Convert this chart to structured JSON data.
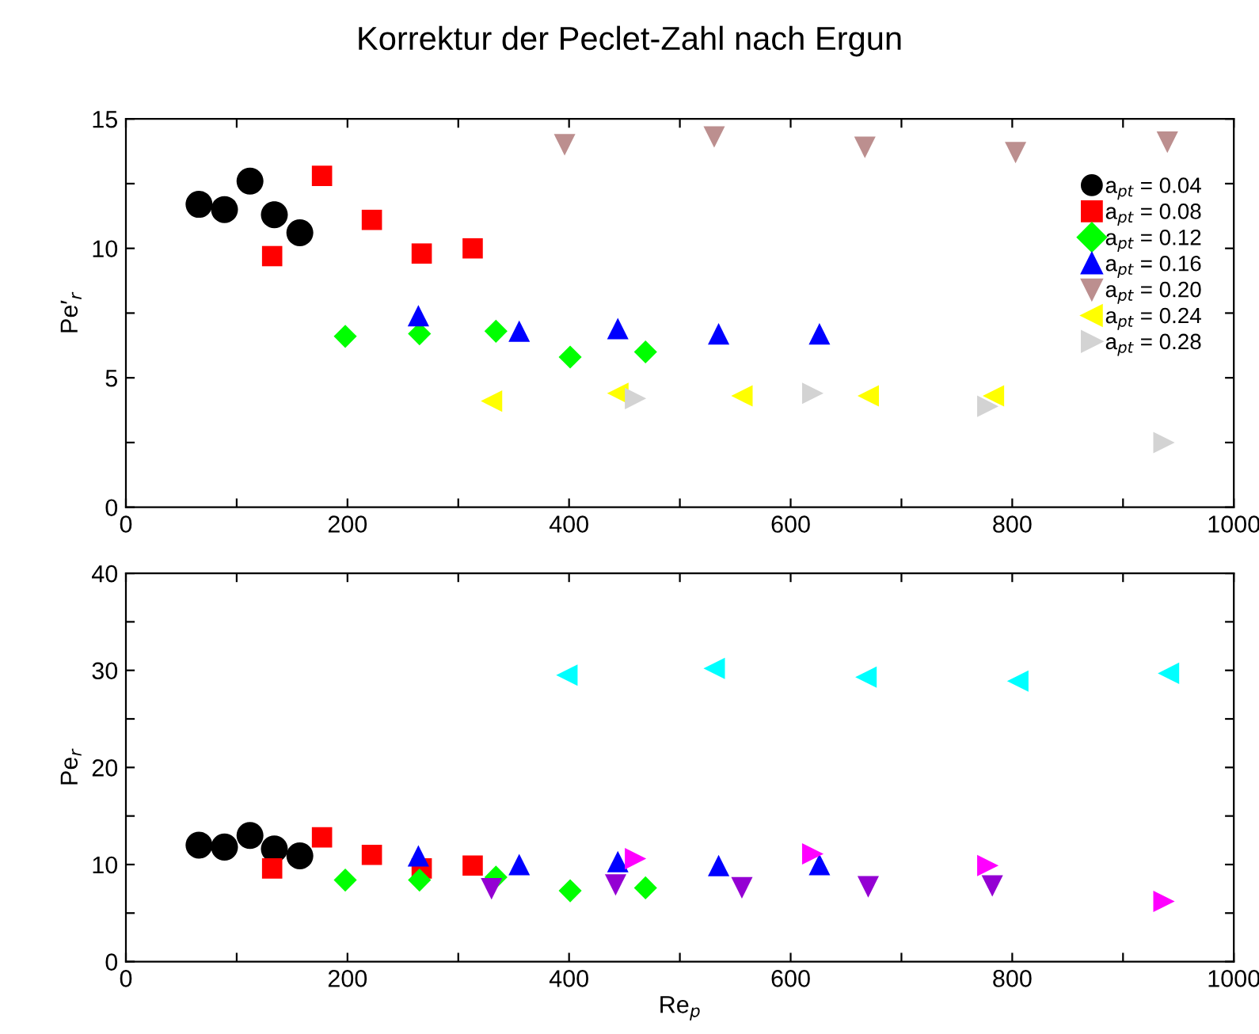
{
  "chart_data": [
    {
      "type": "scatter",
      "title": "Korrektur der Peclet-Zahl nach Ergun",
      "ylabel": "Pe′$_{r}$",
      "xlim": [
        0,
        1000
      ],
      "xticks": [
        0,
        {
          "value": 100,
          "label": null
        },
        200,
        {
          "value": 300,
          "label": null
        },
        400,
        {
          "value": 500,
          "label": null
        },
        600,
        {
          "value": 700,
          "label": null
        },
        800,
        {
          "value": 900,
          "label": null
        },
        1000
      ],
      "ylim": [
        0,
        15
      ],
      "yticks": [
        0,
        {
          "value": 2.5,
          "label": null
        },
        5,
        {
          "value": 7.5,
          "label": null
        },
        10,
        {
          "value": 12.5,
          "label": null
        },
        15
      ],
      "grid": false,
      "legend": "right",
      "series": [
        {
          "name": "a$_{pt}$ = 0.04",
          "color": "#000000",
          "marker": "circle",
          "x": [
            66,
            89,
            112,
            134,
            157
          ],
          "values": [
            11.7,
            11.5,
            12.6,
            11.3,
            10.6
          ]
        },
        {
          "name": "a$_{pt}$ = 0.08",
          "color": "#ff0000",
          "marker": "square",
          "x": [
            132,
            177,
            222,
            267,
            313
          ],
          "values": [
            9.7,
            12.8,
            11.1,
            9.8,
            10.0
          ]
        },
        {
          "name": "a$_{pt}$ = 0.12",
          "color": "#00ff00",
          "marker": "diamond",
          "x": [
            198,
            265,
            334,
            401,
            469
          ],
          "values": [
            6.6,
            6.7,
            6.8,
            5.8,
            6.0
          ]
        },
        {
          "name": "a$_{pt}$ = 0.16",
          "color": "#0000ff",
          "marker": "triangle",
          "x": [
            264,
            355,
            444,
            535,
            626
          ],
          "values": [
            7.4,
            6.8,
            6.9,
            6.7,
            6.7
          ]
        },
        {
          "name": "a$_{pt}$ = 0.20",
          "color": "#bc8f8f",
          "marker": "triangle_down",
          "x": [
            396,
            531,
            667,
            803,
            940
          ],
          "values": [
            14.0,
            14.3,
            13.9,
            13.7,
            14.1
          ]
        },
        {
          "name": "a$_{pt}$ = 0.24",
          "color": "#ffff00",
          "marker": "triangle_left",
          "x": [
            330,
            444,
            556,
            670,
            783
          ],
          "values": [
            4.1,
            4.4,
            4.3,
            4.3,
            4.3
          ]
        },
        {
          "name": "a$_{pt}$ = 0.28",
          "color": "#d3d3d3",
          "marker": "triangle_right",
          "x": [
            460,
            620,
            778,
            937
          ],
          "values": [
            4.2,
            4.4,
            3.9,
            2.5
          ]
        }
      ]
    },
    {
      "type": "scatter",
      "ylabel": "Pe$_{r}$",
      "xlabel": "Re$_{p}$",
      "xlim": [
        0,
        1000
      ],
      "xticks": [
        0,
        {
          "value": 100,
          "label": null
        },
        200,
        {
          "value": 300,
          "label": null
        },
        400,
        {
          "value": 500,
          "label": null
        },
        600,
        {
          "value": 700,
          "label": null
        },
        800,
        {
          "value": 900,
          "label": null
        },
        1000
      ],
      "ylim": [
        0,
        40
      ],
      "yticks": [
        0,
        {
          "value": 5,
          "label": null
        },
        10,
        {
          "value": 15,
          "label": null
        },
        20,
        {
          "value": 25,
          "label": null
        },
        30,
        {
          "value": 35,
          "label": null
        },
        40
      ],
      "grid": false,
      "series": [
        {
          "color": "#000000",
          "marker": "circle",
          "x": [
            66,
            89,
            112,
            134,
            157
          ],
          "values": [
            12.0,
            11.8,
            13.0,
            11.6,
            10.9
          ]
        },
        {
          "color": "#ff0000",
          "marker": "square",
          "x": [
            132,
            177,
            222,
            267,
            313
          ],
          "values": [
            9.6,
            12.8,
            11.0,
            9.6,
            9.9
          ]
        },
        {
          "color": "#00ff00",
          "marker": "diamond",
          "x": [
            198,
            265,
            334,
            401,
            469
          ],
          "values": [
            8.4,
            8.4,
            8.7,
            7.3,
            7.6
          ]
        },
        {
          "color": "#0000ff",
          "marker": "triangle",
          "x": [
            264,
            355,
            444,
            535,
            626
          ],
          "values": [
            10.9,
            10.0,
            10.3,
            9.9,
            10.0
          ]
        },
        {
          "color": "#9400d3",
          "marker": "triangle_down",
          "x": [
            330,
            442,
            556,
            670,
            782
          ],
          "values": [
            7.5,
            7.9,
            7.6,
            7.7,
            7.8
          ]
        },
        {
          "color": "#00ffff",
          "marker": "triangle_left",
          "x": [
            398,
            531,
            668,
            805,
            941
          ],
          "values": [
            29.5,
            30.2,
            29.3,
            28.9,
            29.7
          ]
        },
        {
          "color": "#ff00ff",
          "marker": "triangle_right",
          "x": [
            460,
            620,
            778,
            937
          ],
          "values": [
            10.6,
            11.1,
            9.9,
            6.2
          ]
        }
      ]
    }
  ]
}
